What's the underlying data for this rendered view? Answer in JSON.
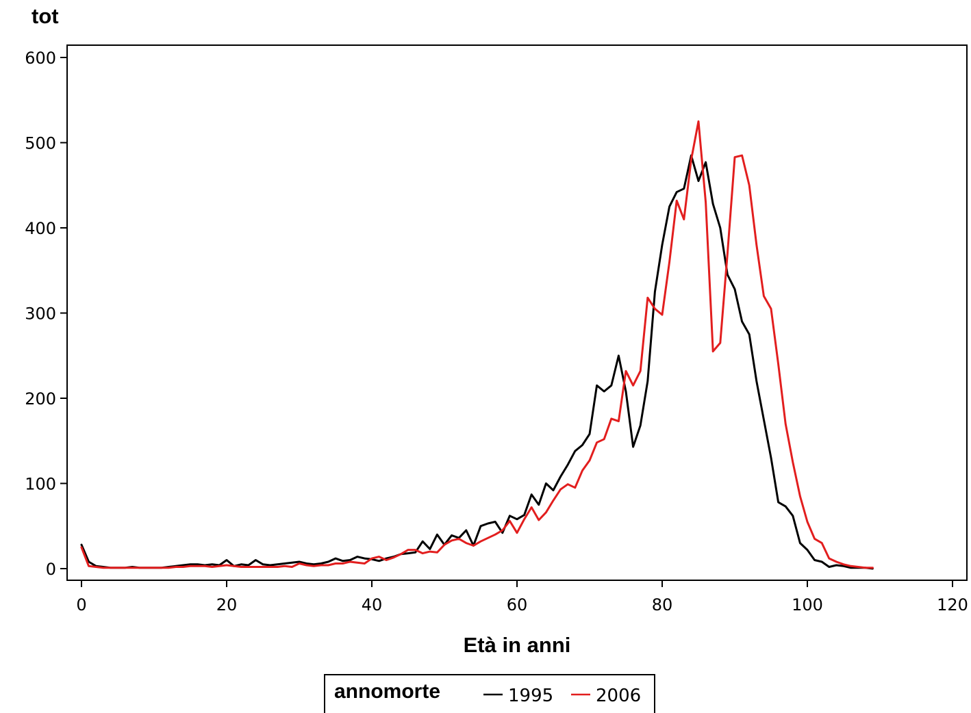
{
  "chart_data": {
    "type": "line",
    "ylabel": "tot",
    "xlabel": "Età in anni",
    "xlim": [
      0,
      120
    ],
    "ylim": [
      0,
      600
    ],
    "xticks": [
      "0",
      "20",
      "40",
      "60",
      "80",
      "100",
      "120"
    ],
    "yticks": [
      "0",
      "100",
      "200",
      "300",
      "400",
      "500",
      "600"
    ],
    "xtick_values": [
      0,
      20,
      40,
      60,
      80,
      100,
      120
    ],
    "ytick_values": [
      0,
      100,
      200,
      300,
      400,
      500,
      600
    ],
    "grid": false,
    "legend": {
      "title": "annomorte",
      "position": "bottom-center"
    },
    "series": [
      {
        "name": "1995",
        "color": "#000000",
        "x": [
          0,
          1,
          2,
          3,
          4,
          5,
          6,
          7,
          8,
          9,
          10,
          11,
          12,
          13,
          14,
          15,
          16,
          17,
          18,
          19,
          20,
          21,
          22,
          23,
          24,
          25,
          26,
          27,
          28,
          29,
          30,
          31,
          32,
          33,
          34,
          35,
          36,
          37,
          38,
          39,
          40,
          41,
          42,
          43,
          44,
          45,
          46,
          47,
          48,
          49,
          50,
          51,
          52,
          53,
          54,
          55,
          56,
          57,
          58,
          59,
          60,
          61,
          62,
          63,
          64,
          65,
          66,
          67,
          68,
          69,
          70,
          71,
          72,
          73,
          74,
          75,
          76,
          77,
          78,
          79,
          80,
          81,
          82,
          83,
          84,
          85,
          86,
          87,
          88,
          89,
          90,
          91,
          92,
          93,
          94,
          95,
          96,
          97,
          98,
          99,
          100,
          101,
          102,
          103,
          104,
          105,
          106,
          107,
          108,
          109
        ],
        "y": [
          28,
          8,
          3,
          2,
          1,
          1,
          1,
          2,
          1,
          1,
          1,
          1,
          2,
          3,
          4,
          5,
          5,
          4,
          5,
          4,
          10,
          3,
          5,
          4,
          10,
          5,
          4,
          5,
          6,
          7,
          8,
          6,
          5,
          6,
          8,
          12,
          9,
          10,
          14,
          12,
          11,
          9,
          12,
          14,
          17,
          18,
          19,
          32,
          23,
          40,
          28,
          39,
          36,
          45,
          27,
          50,
          53,
          55,
          42,
          62,
          58,
          63,
          87,
          75,
          100,
          92,
          108,
          122,
          138,
          145,
          158,
          215,
          208,
          215,
          250,
          208,
          143,
          168,
          220,
          325,
          380,
          425,
          442,
          446,
          485,
          455,
          477,
          428,
          400,
          345,
          328,
          290,
          275,
          220,
          175,
          130,
          78,
          73,
          62,
          30,
          22,
          10,
          8,
          2,
          4,
          3,
          1,
          1,
          1,
          0
        ]
      },
      {
        "name": "2006",
        "color": "#e21e1e",
        "x": [
          0,
          1,
          2,
          3,
          4,
          5,
          6,
          7,
          8,
          9,
          10,
          11,
          12,
          13,
          14,
          15,
          16,
          17,
          18,
          19,
          20,
          21,
          22,
          23,
          24,
          25,
          26,
          27,
          28,
          29,
          30,
          31,
          32,
          33,
          34,
          35,
          36,
          37,
          38,
          39,
          40,
          41,
          42,
          43,
          44,
          45,
          46,
          47,
          48,
          49,
          50,
          51,
          52,
          53,
          54,
          55,
          56,
          57,
          58,
          59,
          60,
          61,
          62,
          63,
          64,
          65,
          66,
          67,
          68,
          69,
          70,
          71,
          72,
          73,
          74,
          75,
          76,
          77,
          78,
          79,
          80,
          81,
          82,
          83,
          84,
          85,
          86,
          87,
          88,
          89,
          90,
          91,
          92,
          93,
          94,
          95,
          96,
          97,
          98,
          99,
          100,
          101,
          102,
          103,
          104,
          105,
          106,
          107,
          108,
          109
        ],
        "y": [
          25,
          3,
          2,
          1,
          1,
          1,
          1,
          1,
          1,
          1,
          1,
          1,
          1,
          2,
          2,
          3,
          3,
          3,
          2,
          3,
          4,
          3,
          2,
          2,
          2,
          2,
          2,
          2,
          3,
          2,
          6,
          4,
          3,
          4,
          4,
          6,
          6,
          8,
          7,
          6,
          12,
          14,
          10,
          13,
          17,
          22,
          22,
          18,
          20,
          19,
          28,
          33,
          35,
          30,
          27,
          32,
          36,
          40,
          45,
          56,
          42,
          58,
          72,
          57,
          66,
          80,
          93,
          99,
          95,
          115,
          127,
          148,
          152,
          176,
          173,
          232,
          215,
          232,
          318,
          305,
          298,
          360,
          432,
          410,
          480,
          525,
          430,
          255,
          265,
          370,
          483,
          485,
          450,
          380,
          320,
          305,
          240,
          170,
          125,
          85,
          55,
          35,
          30,
          12,
          8,
          5,
          3,
          2,
          1,
          1
        ]
      }
    ]
  }
}
